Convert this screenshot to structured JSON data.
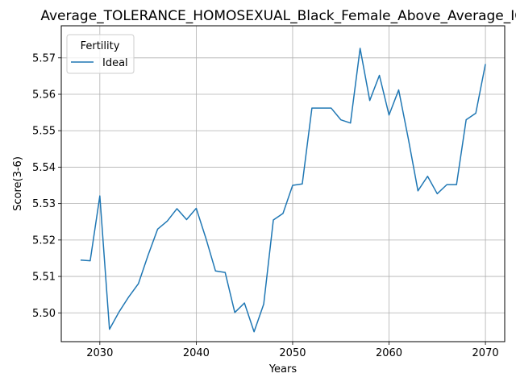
{
  "chart_data": {
    "type": "line",
    "title": "Average_TOLERANCE_HOMOSEXUAL_Black_Female_Above_Average_IQ",
    "xlabel": "Years",
    "ylabel": "Score(3-6)",
    "xlim": [
      2026,
      2072
    ],
    "ylim": [
      5.4921,
      5.5788
    ],
    "xticks": [
      2030,
      2040,
      2050,
      2060,
      2070
    ],
    "xtick_labels": [
      "2030",
      "2040",
      "2050",
      "2060",
      "2070"
    ],
    "yticks": [
      5.5,
      5.51,
      5.52,
      5.53,
      5.54,
      5.55,
      5.56,
      5.57
    ],
    "ytick_labels": [
      "5.50",
      "5.51",
      "5.52",
      "5.53",
      "5.54",
      "5.55",
      "5.56",
      "5.57"
    ],
    "grid": true,
    "legend": {
      "title": "Fertility",
      "position": "upper-left"
    },
    "series": [
      {
        "name": "Ideal",
        "color": "#1f77b4",
        "x": [
          2028,
          2029,
          2030,
          2031,
          2032,
          2033,
          2034,
          2035,
          2036,
          2037,
          2038,
          2039,
          2040,
          2041,
          2042,
          2043,
          2044,
          2045,
          2046,
          2047,
          2048,
          2049,
          2050,
          2051,
          2052,
          2053,
          2054,
          2055,
          2056,
          2057,
          2058,
          2059,
          2060,
          2061,
          2062,
          2063,
          2064,
          2065,
          2066,
          2067,
          2068,
          2069,
          2070
        ],
        "y": [
          5.5145,
          5.5143,
          5.5321,
          5.4955,
          5.5003,
          5.5044,
          5.508,
          5.5158,
          5.523,
          5.5252,
          5.5286,
          5.5256,
          5.5287,
          5.5205,
          5.5115,
          5.5111,
          5.5001,
          5.5027,
          5.4948,
          5.5024,
          5.5255,
          5.5273,
          5.535,
          5.5354,
          5.5562,
          5.5562,
          5.5562,
          5.553,
          5.5521,
          5.5726,
          5.5583,
          5.5652,
          5.5543,
          5.5612,
          5.5478,
          5.5335,
          5.5375,
          5.5327,
          5.5352,
          5.5352,
          5.553,
          5.5548,
          5.5683
        ]
      }
    ]
  }
}
